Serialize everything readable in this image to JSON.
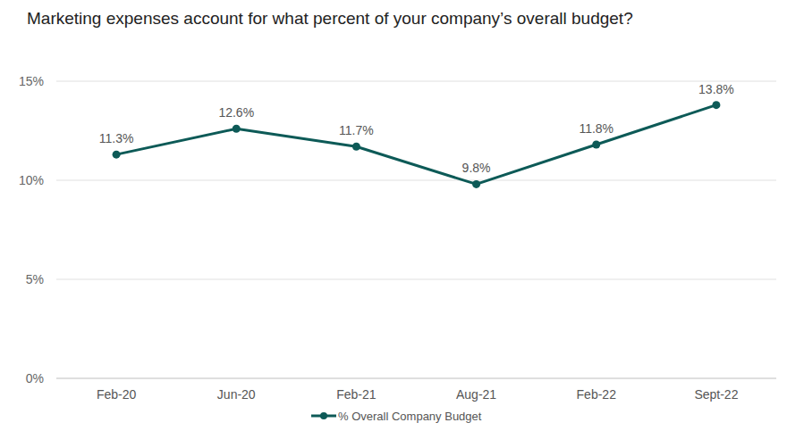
{
  "chart_data": {
    "type": "line",
    "title": "Marketing expenses account for what percent of your company’s overall budget?",
    "categories": [
      "Feb-20",
      "Jun-20",
      "Feb-21",
      "Aug-21",
      "Feb-22",
      "Sept-22"
    ],
    "series": [
      {
        "name": "% Overall Company Budget",
        "color": "#0d5a57",
        "values": [
          11.3,
          12.6,
          11.7,
          9.8,
          11.8,
          13.8
        ],
        "value_labels": [
          "11.3%",
          "12.6%",
          "11.7%",
          "9.8%",
          "11.8%",
          "13.8%"
        ],
        "marker": "circle",
        "line_style": "solid"
      }
    ],
    "ylim": [
      0,
      15
    ],
    "yticks": [
      {
        "value": 0,
        "label": "0%"
      },
      {
        "value": 5,
        "label": "5%"
      },
      {
        "value": 10,
        "label": "10%"
      },
      {
        "value": 15,
        "label": "15%"
      }
    ],
    "grid": true,
    "data_labels": true,
    "legend": "bottom"
  }
}
